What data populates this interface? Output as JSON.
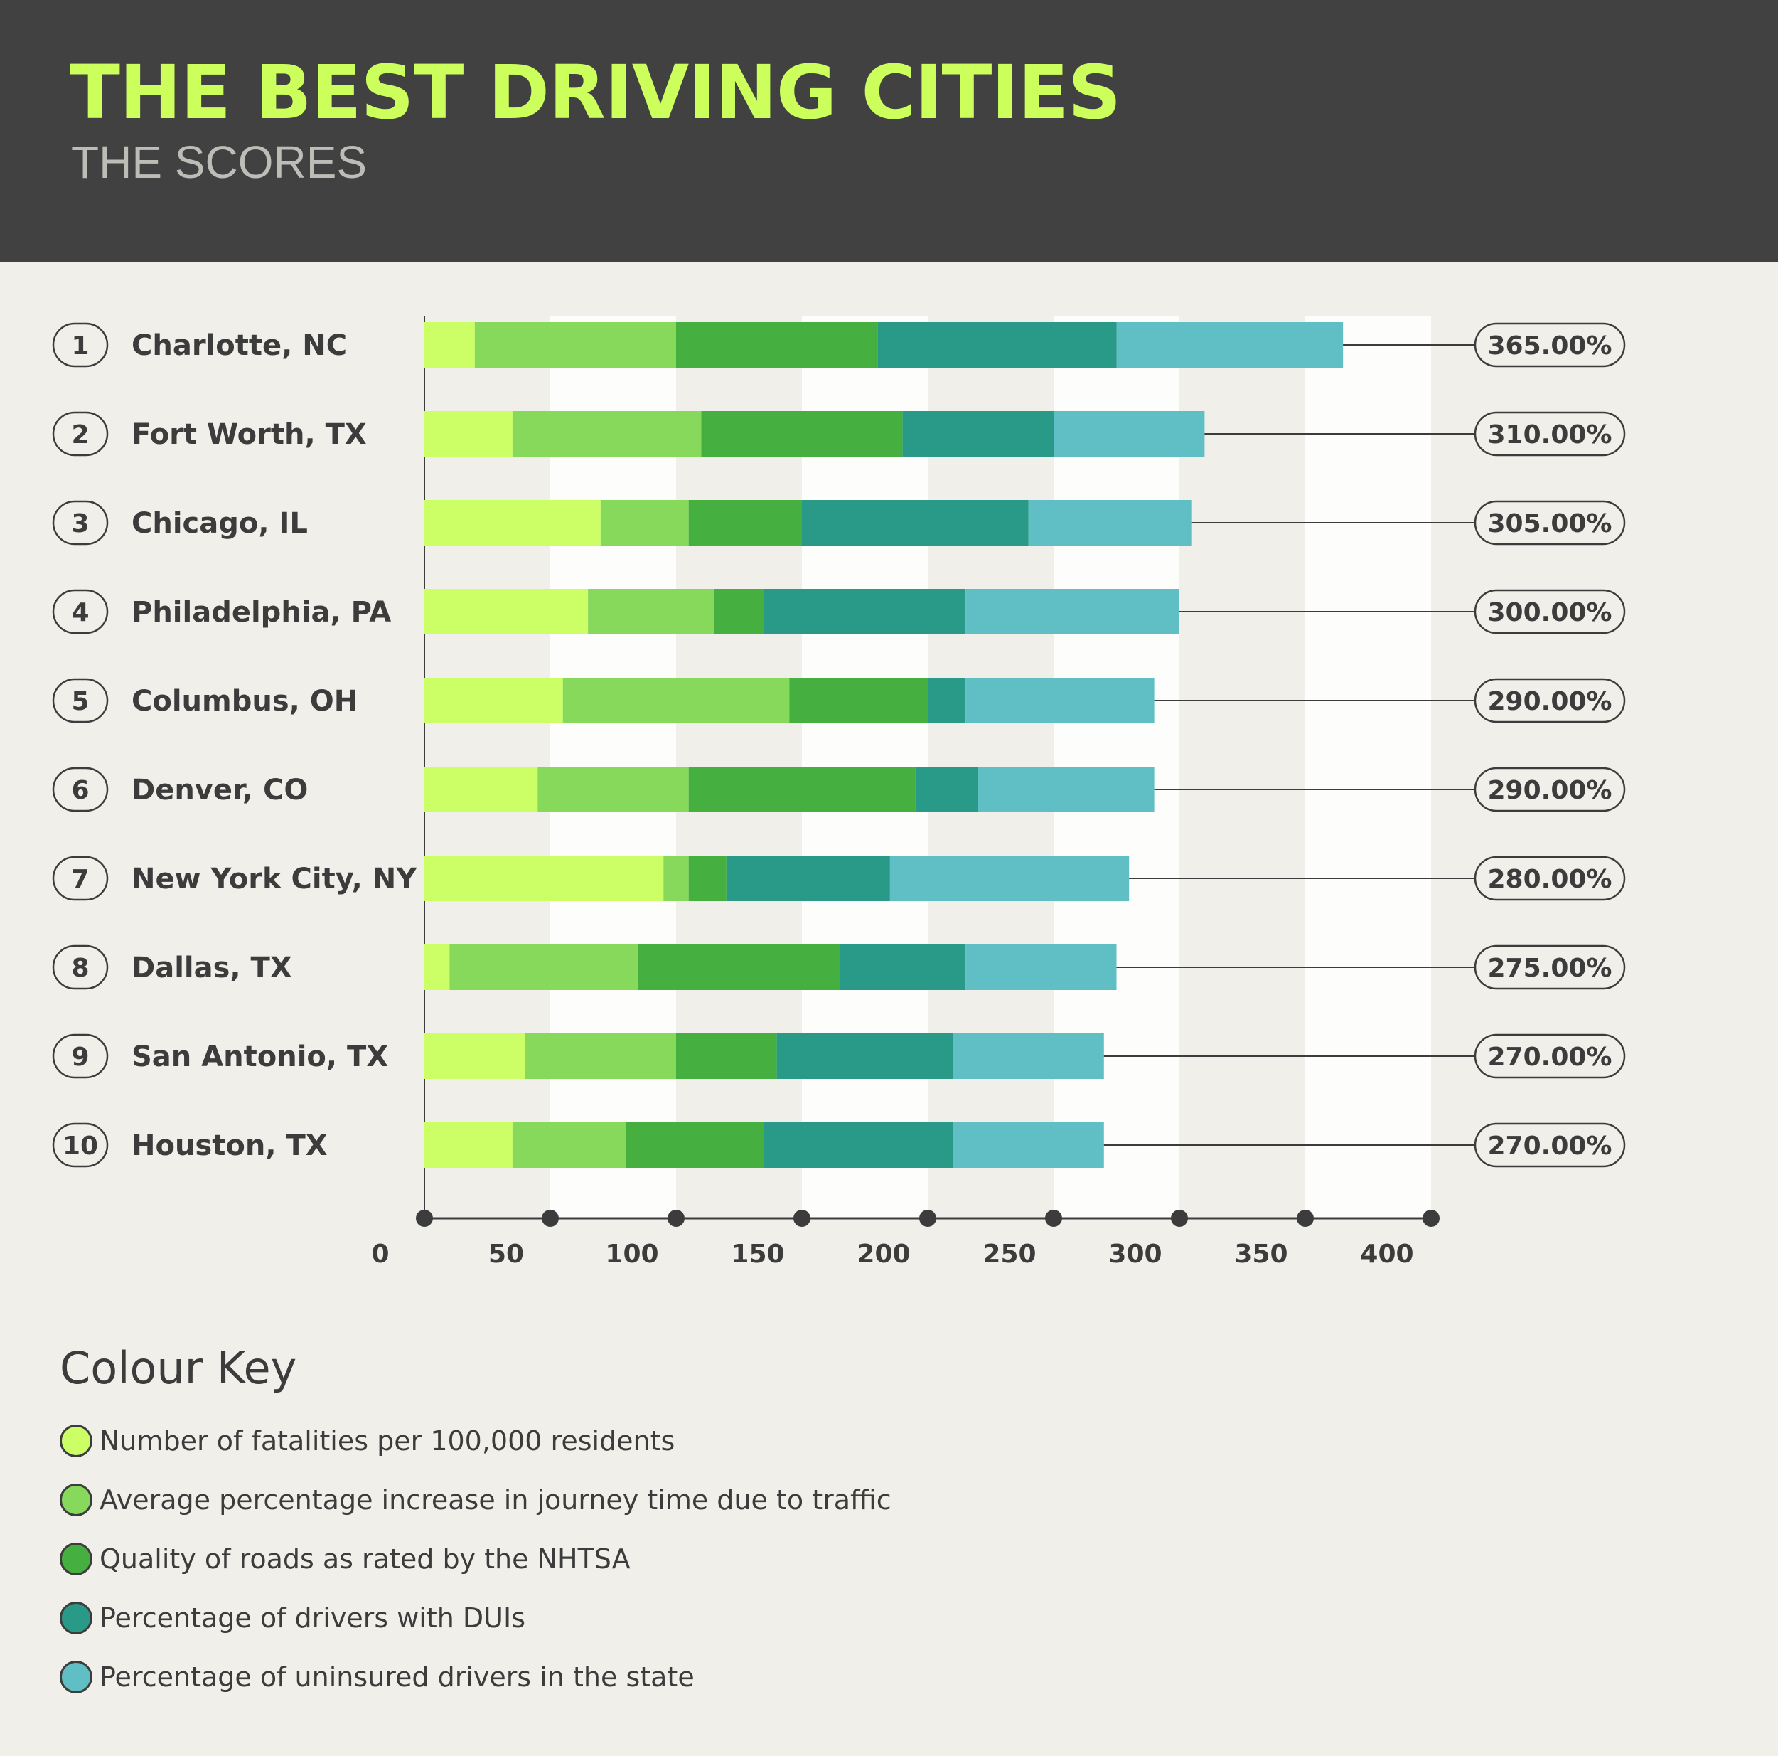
{
  "header": {
    "title": "THE BEST DRIVING CITIES",
    "subtitle": "THE SCORES"
  },
  "legend": {
    "title": "Colour Key",
    "items": [
      {
        "label": "Number of fatalities per 100,000 residents",
        "color": "#ccff66"
      },
      {
        "label": "Average percentage increase in journey time due to traffic",
        "color": "#86d95a"
      },
      {
        "label": "Quality of roads as rated by the NHTSA",
        "color": "#45b03f"
      },
      {
        "label": "Percentage of drivers with DUIs",
        "color": "#2a9a88"
      },
      {
        "label": "Percentage of uninsured drivers in the state",
        "color": "#60bfc5"
      }
    ]
  },
  "chart_data": {
    "type": "bar",
    "orientation": "horizontal",
    "stacked": true,
    "title": "THE BEST DRIVING CITIES",
    "subtitle": "THE SCORES",
    "xlim": [
      0,
      400
    ],
    "x_ticks": [
      "0",
      "50",
      "100",
      "150",
      "200",
      "250",
      "300",
      "350",
      "400"
    ],
    "tick_values": [
      0,
      50,
      100,
      150,
      200,
      250,
      300,
      350,
      400
    ],
    "categories": [
      "Charlotte, NC",
      "Fort Worth, TX",
      "Chicago, IL",
      "Philadelphia, PA",
      "Columbus, OH",
      "Denver, CO",
      "New York City, NY",
      "Dallas, TX",
      "San Antonio, TX",
      "Houston, TX"
    ],
    "ranks": [
      "1",
      "2",
      "3",
      "4",
      "5",
      "6",
      "7",
      "8",
      "9",
      "10"
    ],
    "totals": [
      "365.00%",
      "310.00%",
      "305.00%",
      "300.00%",
      "290.00%",
      "290.00%",
      "280.00%",
      "275.00%",
      "270.00%",
      "270.00%"
    ],
    "series": [
      {
        "name": "Number of fatalities per 100,000 residents",
        "color": "#ccff66",
        "values": [
          20,
          35,
          70,
          65,
          55,
          45,
          95,
          10,
          40,
          35
        ]
      },
      {
        "name": "Average percentage increase in journey time due to traffic",
        "color": "#86d95a",
        "values": [
          80,
          75,
          35,
          50,
          90,
          60,
          10,
          75,
          60,
          45
        ]
      },
      {
        "name": "Quality of roads as rated by the NHTSA",
        "color": "#45b03f",
        "values": [
          80,
          80,
          45,
          20,
          55,
          90,
          15,
          80,
          40,
          55
        ]
      },
      {
        "name": "Percentage of drivers with DUIs",
        "color": "#2a9a88",
        "values": [
          95,
          60,
          90,
          80,
          15,
          25,
          65,
          50,
          70,
          75
        ]
      },
      {
        "name": "Percentage of uninsured drivers in the state",
        "color": "#60bfc5",
        "values": [
          90,
          60,
          65,
          85,
          75,
          70,
          95,
          60,
          60,
          60
        ]
      }
    ],
    "grid": "alternating vertical bands",
    "legend_position": "bottom-left"
  }
}
